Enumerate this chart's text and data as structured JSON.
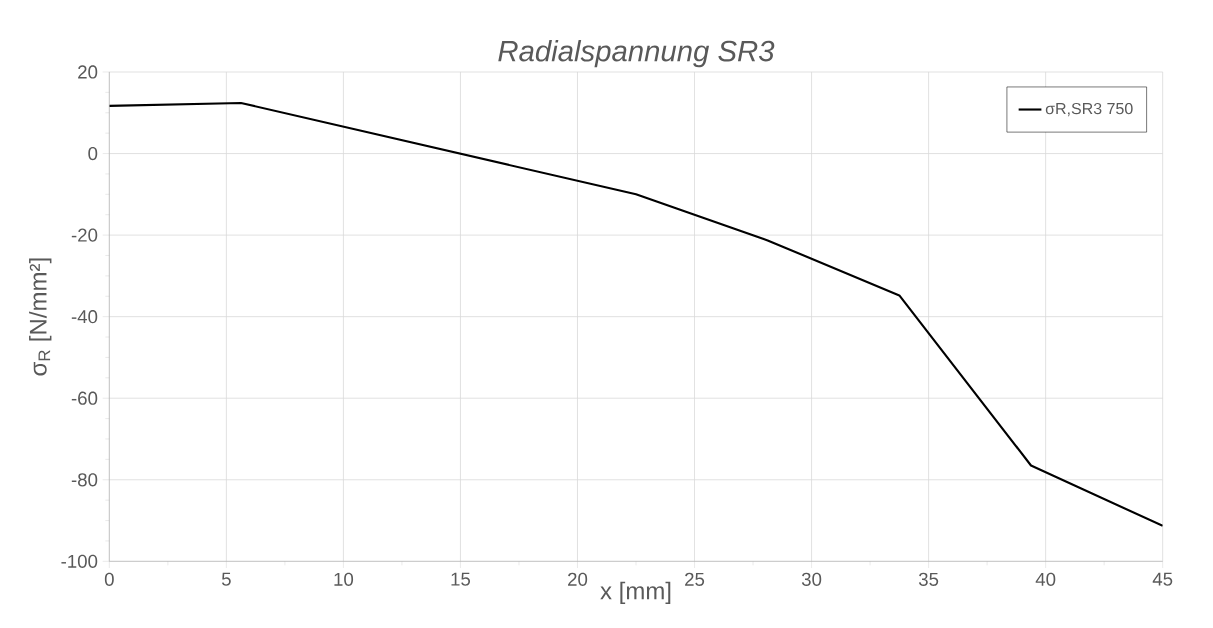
{
  "chart_data": {
    "type": "line",
    "title": "Radialspannung SR3",
    "xlabel": "x [mm]",
    "ylabel": "σ$_{R}$ [N/mm²]",
    "x": [
      0,
      5.625,
      22.5,
      28.125,
      33.75,
      39.375,
      45
    ],
    "series": [
      {
        "name": "σR,SR3 750",
        "color": "#000000",
        "values": [
          11.7,
          12.4,
          -10.0,
          -21.3,
          -34.8,
          -76.5,
          -91.3
        ]
      }
    ],
    "xlim": [
      0,
      45
    ],
    "ylim": [
      -100,
      20
    ],
    "xticks": [
      0,
      5,
      10,
      15,
      20,
      25,
      30,
      35,
      40,
      45
    ],
    "yticks": [
      -100,
      -80,
      -60,
      -40,
      -20,
      0,
      20
    ],
    "grid": true,
    "legend": "top right",
    "marker": "none",
    "line_style": "solid"
  }
}
